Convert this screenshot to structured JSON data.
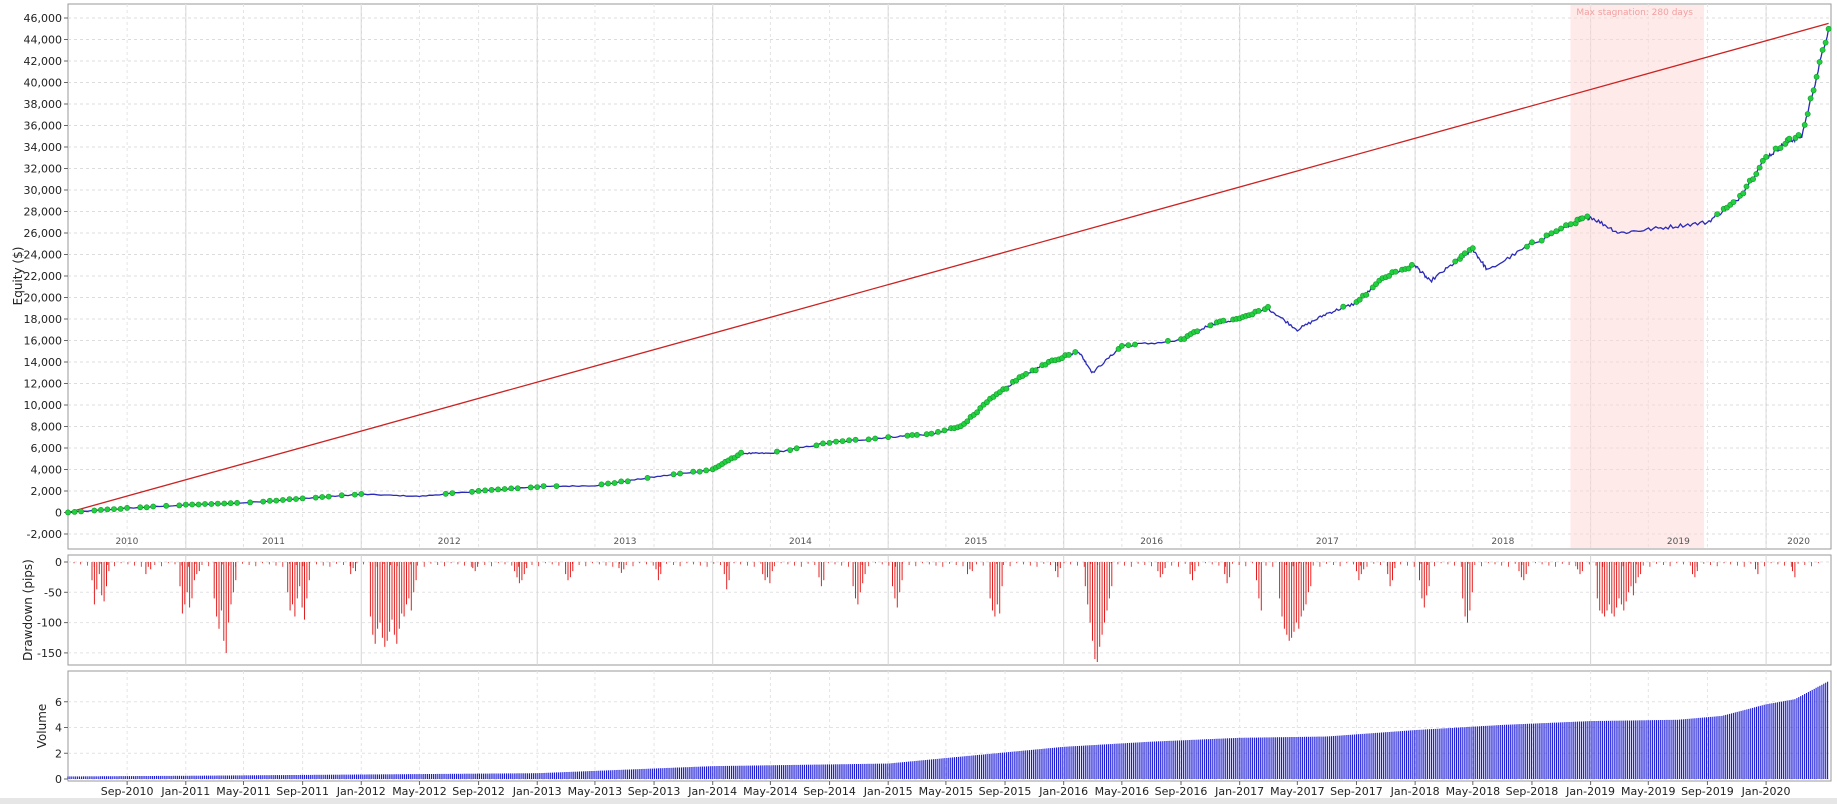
{
  "chart_data": [
    {
      "type": "line",
      "ylabel": "Equity ($)",
      "ylim": [
        -2000,
        46000
      ],
      "yticks": [
        -2000,
        0,
        2000,
        4000,
        6000,
        8000,
        10000,
        12000,
        14000,
        16000,
        18000,
        20000,
        22000,
        24000,
        26000,
        28000,
        30000,
        32000,
        34000,
        36000,
        38000,
        40000,
        42000,
        44000,
        46000
      ],
      "ytick_labels": [
        "-2,000",
        "0",
        "2,000",
        "4,000",
        "6,000",
        "8,000",
        "10,000",
        "12,000",
        "14,000",
        "16,000",
        "18,000",
        "20,000",
        "22,000",
        "24,000",
        "26,000",
        "28,000",
        "30,000",
        "32,000",
        "34,000",
        "36,000",
        "38,000",
        "40,000",
        "42,000",
        "44,000",
        "46,000"
      ],
      "xlim": [
        "2010-05-01",
        "2020-05-15"
      ],
      "year_labels": [
        "2010",
        "2011",
        "2012",
        "2013",
        "2014",
        "2015",
        "2016",
        "2017",
        "2018",
        "2019",
        "2020"
      ],
      "annotation": {
        "text": "Max stagnation: 280 days",
        "start": "2018-11-20",
        "end": "2019-08-25"
      },
      "grid": true,
      "series": [
        {
          "color": "#2a2ab8",
          "x": [
            "2010-05-01",
            "2010-09-01",
            "2011-01-01",
            "2011-05-01",
            "2011-09-01",
            "2012-01-01",
            "2012-05-01",
            "2012-09-01",
            "2013-01-01",
            "2013-05-01",
            "2013-09-01",
            "2014-01-01",
            "2014-03-01",
            "2014-05-01",
            "2014-09-01",
            "2015-01-01",
            "2015-04-01",
            "2015-06-01",
            "2015-08-01",
            "2015-10-01",
            "2015-12-01",
            "2016-02-01",
            "2016-03-01",
            "2016-05-01",
            "2016-09-01",
            "2016-11-01",
            "2017-01-01",
            "2017-03-01",
            "2017-05-01",
            "2017-07-01",
            "2017-09-01",
            "2017-11-01",
            "2018-01-01",
            "2018-02-01",
            "2018-04-01",
            "2018-05-01",
            "2018-06-01",
            "2018-09-01",
            "2018-12-01",
            "2019-01-01",
            "2019-03-01",
            "2019-06-01",
            "2019-09-01",
            "2019-11-01",
            "2020-01-01",
            "2020-02-15",
            "2020-03-15",
            "2020-05-10"
          ],
          "values": [
            0,
            400,
            700,
            900,
            1300,
            1700,
            1500,
            2000,
            2400,
            2500,
            3300,
            4000,
            5500,
            5500,
            6500,
            7000,
            7300,
            8000,
            10500,
            12500,
            14000,
            15000,
            13000,
            15500,
            16000,
            17500,
            18000,
            19000,
            17000,
            18500,
            19500,
            22000,
            23000,
            21500,
            23500,
            24500,
            22500,
            25000,
            27000,
            27500,
            26000,
            26500,
            27000,
            29000,
            33000,
            34500,
            35000,
            45000
          ]
        },
        {
          "color": "#cc2222",
          "x": [
            "2010-05-01",
            "2020-05-10"
          ],
          "values": [
            0,
            45500
          ]
        }
      ]
    },
    {
      "type": "bar",
      "ylabel": "Drawdown (pips)",
      "ylim": [
        -170,
        5
      ],
      "yticks": [
        0,
        -50,
        -100,
        -150
      ],
      "ytick_labels": [
        "0",
        "-50",
        "-100",
        "-150"
      ],
      "color": "#e02020",
      "bars": [
        {
          "x": "2010-06-20",
          "values": [
            -30,
            -70,
            -45,
            -20,
            -55,
            -65,
            -40,
            -15
          ]
        },
        {
          "x": "2010-10-10",
          "values": [
            -20,
            -8,
            -12
          ]
        },
        {
          "x": "2010-12-20",
          "values": [
            -40,
            -85,
            -70,
            -50,
            -75,
            -60,
            -30,
            -20,
            -15
          ]
        },
        {
          "x": "2011-03-01",
          "values": [
            -60,
            -90,
            -110,
            -80,
            -130,
            -150,
            -100,
            -70,
            -50,
            -30
          ]
        },
        {
          "x": "2011-08-01",
          "values": [
            -50,
            -80,
            -70,
            -90,
            -60,
            -40,
            -75,
            -95,
            -60,
            -30
          ]
        },
        {
          "x": "2011-12-10",
          "values": [
            -20,
            -10,
            -15
          ]
        },
        {
          "x": "2012-01-20",
          "values": [
            -90,
            -120,
            -135,
            -110,
            -100,
            -125,
            -140,
            -130,
            -115,
            -95,
            -120,
            -135,
            -110,
            -85,
            -90,
            -70,
            -60,
            -80,
            -50,
            -30
          ]
        },
        {
          "x": "2012-08-20",
          "values": [
            -10,
            -15,
            -8
          ]
        },
        {
          "x": "2012-11-15",
          "values": [
            -15,
            -25,
            -35,
            -30,
            -20,
            -10
          ]
        },
        {
          "x": "2013-03-01",
          "values": [
            -20,
            -30,
            -25,
            -15
          ]
        },
        {
          "x": "2013-06-20",
          "values": [
            -10,
            -18,
            -12
          ]
        },
        {
          "x": "2013-09-05",
          "values": [
            -12,
            -30,
            -20
          ]
        },
        {
          "x": "2014-01-25",
          "values": [
            -20,
            -45,
            -30
          ]
        },
        {
          "x": "2014-04-15",
          "values": [
            -20,
            -30,
            -25,
            -35,
            -15
          ]
        },
        {
          "x": "2014-08-10",
          "values": [
            -25,
            -40,
            -30
          ]
        },
        {
          "x": "2014-10-20",
          "values": [
            -40,
            -60,
            -70,
            -50,
            -35,
            -20
          ]
        },
        {
          "x": "2015-01-10",
          "values": [
            -40,
            -60,
            -75,
            -50,
            -30
          ]
        },
        {
          "x": "2015-06-15",
          "values": [
            -20,
            -12,
            -15
          ]
        },
        {
          "x": "2015-08-01",
          "values": [
            -60,
            -80,
            -90,
            -70,
            -85,
            -40
          ]
        },
        {
          "x": "2015-12-15",
          "values": [
            -15,
            -25,
            -10
          ]
        },
        {
          "x": "2016-02-15",
          "values": [
            -40,
            -70,
            -100,
            -130,
            -160,
            -165,
            -140,
            -120,
            -100,
            -80,
            -60,
            -40
          ]
        },
        {
          "x": "2016-07-15",
          "values": [
            -15,
            -25,
            -20,
            -10
          ]
        },
        {
          "x": "2016-09-20",
          "values": [
            -20,
            -30,
            -15
          ]
        },
        {
          "x": "2016-12-01",
          "values": [
            -20,
            -35,
            -25
          ]
        },
        {
          "x": "2017-02-05",
          "values": [
            -30,
            -60,
            -80
          ]
        },
        {
          "x": "2017-03-25",
          "values": [
            -60,
            -90,
            -110,
            -120,
            -130,
            -125,
            -115,
            -100,
            -110,
            -90,
            -80,
            -70,
            -50,
            -40
          ]
        },
        {
          "x": "2017-09-01",
          "values": [
            -15,
            -30,
            -20,
            -12
          ]
        },
        {
          "x": "2017-11-05",
          "values": [
            -20,
            -40,
            -30,
            -10
          ]
        },
        {
          "x": "2018-01-10",
          "values": [
            -30,
            -60,
            -75,
            -55,
            -40
          ]
        },
        {
          "x": "2018-04-10",
          "values": [
            -60,
            -90,
            -100,
            -80,
            -50
          ]
        },
        {
          "x": "2018-08-05",
          "values": [
            -15,
            -25,
            -30,
            -20
          ]
        },
        {
          "x": "2018-12-05",
          "values": [
            -12,
            -20,
            -15
          ]
        },
        {
          "x": "2019-01-15",
          "values": [
            -60,
            -80,
            -85,
            -90,
            -80,
            -70,
            -85,
            -90,
            -75,
            -60,
            -70,
            -80,
            -65,
            -50,
            -40,
            -55,
            -35,
            -25,
            -20
          ]
        },
        {
          "x": "2019-08-01",
          "values": [
            -20,
            -25,
            -15
          ]
        },
        {
          "x": "2019-12-10",
          "values": [
            -12,
            -20
          ]
        },
        {
          "x": "2020-02-25",
          "values": [
            -15,
            -25
          ]
        }
      ]
    },
    {
      "type": "bar",
      "ylabel": "Volume",
      "ylim": [
        0,
        8
      ],
      "yticks": [
        0,
        2,
        4,
        6
      ],
      "ytick_labels": [
        "0",
        "2",
        "4",
        "6"
      ],
      "color": "#1a1ad6",
      "x": [
        "2010-05-01",
        "2011-01-01",
        "2012-01-01",
        "2013-01-01",
        "2014-01-01",
        "2015-01-01",
        "2016-01-01",
        "2016-07-01",
        "2017-01-01",
        "2017-07-01",
        "2018-01-01",
        "2018-07-01",
        "2019-01-01",
        "2019-07-01",
        "2019-10-01",
        "2020-01-01",
        "2020-03-01",
        "2020-05-10"
      ],
      "values": [
        0.2,
        0.25,
        0.35,
        0.45,
        1.0,
        1.2,
        2.5,
        2.9,
        3.2,
        3.3,
        3.8,
        4.2,
        4.5,
        4.6,
        4.9,
        5.8,
        6.2,
        7.6
      ],
      "xtick_labels": [
        "Sep-2010",
        "Jan-2011",
        "May-2011",
        "Sep-2011",
        "Jan-2012",
        "May-2012",
        "Sep-2012",
        "Jan-2013",
        "May-2013",
        "Sep-2013",
        "Jan-2014",
        "May-2014",
        "Sep-2014",
        "Jan-2015",
        "May-2015",
        "Sep-2015",
        "Jan-2016",
        "May-2016",
        "Sep-2016",
        "Jan-2017",
        "May-2017",
        "Sep-2017",
        "Jan-2018",
        "May-2018",
        "Sep-2018",
        "Jan-2019",
        "May-2019",
        "Sep-2019",
        "Jan-2020"
      ],
      "xtick_dates": [
        "2010-09-01",
        "2011-01-01",
        "2011-05-01",
        "2011-09-01",
        "2012-01-01",
        "2012-05-01",
        "2012-09-01",
        "2013-01-01",
        "2013-05-01",
        "2013-09-01",
        "2014-01-01",
        "2014-05-01",
        "2014-09-01",
        "2015-01-01",
        "2015-05-01",
        "2015-09-01",
        "2016-01-01",
        "2016-05-01",
        "2016-09-01",
        "2017-01-01",
        "2017-05-01",
        "2017-09-01",
        "2018-01-01",
        "2018-05-01",
        "2018-09-01",
        "2019-01-01",
        "2019-05-01",
        "2019-09-01",
        "2020-01-01"
      ]
    }
  ]
}
